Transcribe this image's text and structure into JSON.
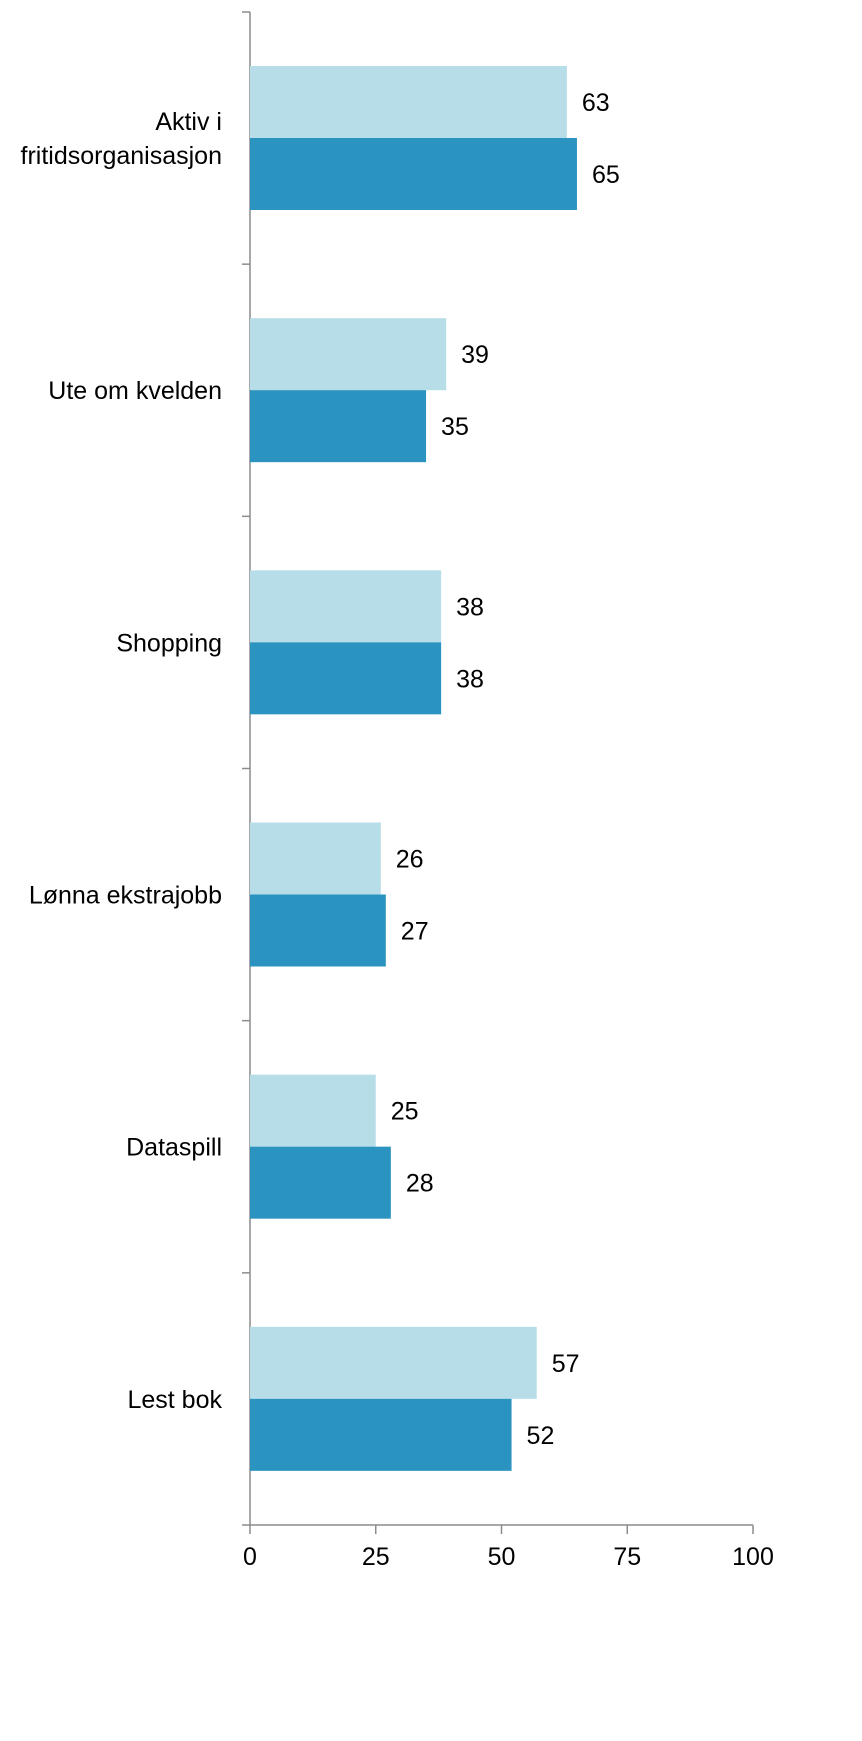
{
  "chart_data": {
    "type": "bar",
    "orientation": "horizontal",
    "title": "",
    "xlabel": "",
    "ylabel": "",
    "categories": [
      [
        "Aktiv i",
        "fritidsorganisasjon"
      ],
      [
        "Ute om kvelden"
      ],
      [
        "Shopping"
      ],
      [
        "Lønna ekstrajobb"
      ],
      [
        "Dataspill"
      ],
      [
        "Lest bok"
      ]
    ],
    "series": [
      {
        "values": [
          63,
          39,
          38,
          26,
          25,
          57
        ],
        "color": "#b7dde8"
      },
      {
        "values": [
          65,
          35,
          38,
          27,
          28,
          52
        ],
        "color": "#2a93bf"
      }
    ],
    "xlim": [
      0,
      100
    ],
    "xticks": [
      0,
      25,
      50,
      75,
      100
    ],
    "xtick_labels": [
      "0",
      "25",
      "50",
      "75",
      "100"
    ],
    "grid": false,
    "legend": "none"
  }
}
